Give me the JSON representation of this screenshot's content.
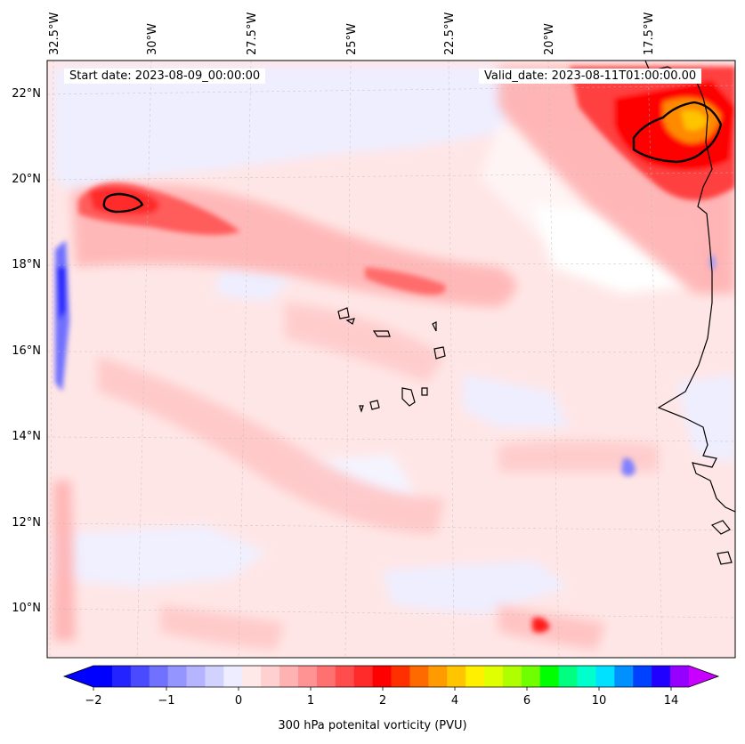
{
  "map": {
    "start_date": "Start date: 2023-08-09_00:00:00",
    "valid_date": "Valid_date: 2023-08-11T01:00:00.00",
    "lon_labels": [
      "32.5°W",
      "30°W",
      "27.5°W",
      "25°W",
      "22.5°W",
      "20°W",
      "17.5°W"
    ],
    "lat_labels": [
      "22°N",
      "20°N",
      "18°N",
      "16°N",
      "14°N",
      "12°N",
      "10°N"
    ],
    "extent": {
      "lon_min": -33,
      "lon_max": -15.5,
      "lat_min": 8.9,
      "lat_max": 22.8
    }
  },
  "colorbar": {
    "label": "300 hPa potenital vorticity (PVU)",
    "ticks": [
      "−2",
      "−1",
      "0",
      "1",
      "2",
      "4",
      "6",
      "10",
      "14"
    ],
    "colors": [
      "#0000ff",
      "#2323ff",
      "#4a4aff",
      "#7171ff",
      "#9595ff",
      "#b4b4ff",
      "#d2d2ff",
      "#ededff",
      "#ffe8e8",
      "#ffd0d0",
      "#ffb2b2",
      "#ff9292",
      "#ff7070",
      "#ff4d4d",
      "#ff2a2a",
      "#ff0000",
      "#ff3000",
      "#ff6a00",
      "#ff9a00",
      "#ffc600",
      "#fff000",
      "#e0ff00",
      "#b0ff00",
      "#70ff00",
      "#00ff00",
      "#00ff80",
      "#00ffcc",
      "#00e0ff",
      "#0090ff",
      "#0040ff",
      "#2000ff",
      "#9600ff"
    ],
    "under_color": "#0000ff",
    "over_color": "#c800ff"
  }
}
